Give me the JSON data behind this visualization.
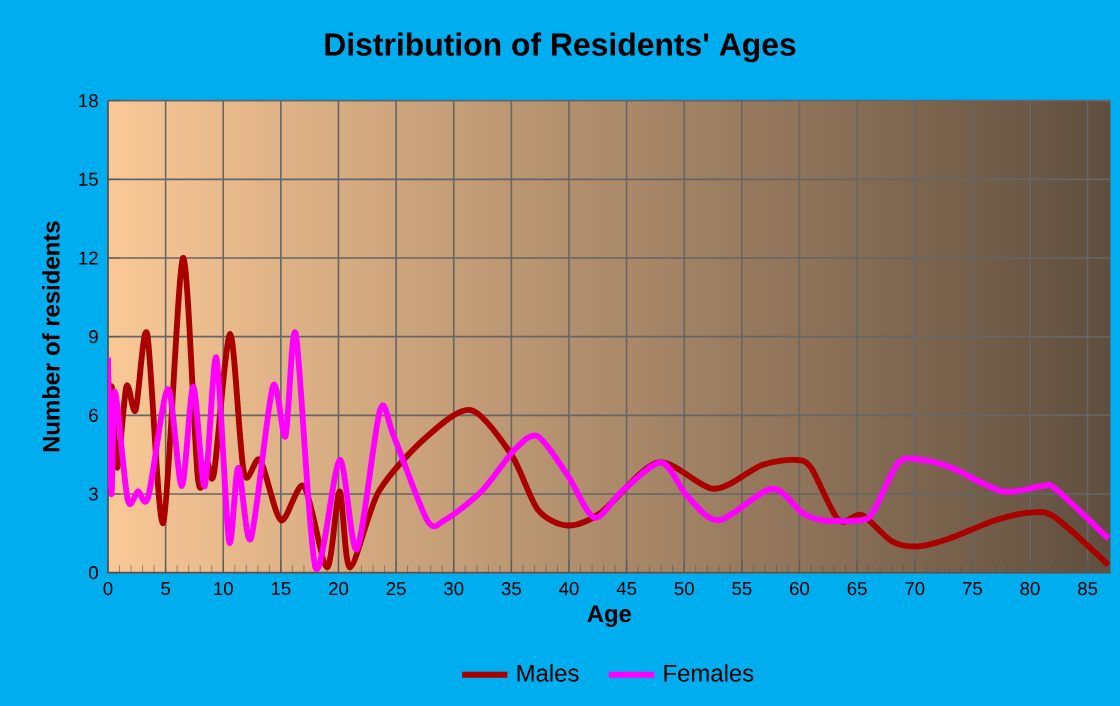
{
  "chart_data": {
    "type": "line",
    "title": "Distribution of Residents' Ages",
    "xlabel": "Age",
    "ylabel": "Number of residents",
    "xlim": [
      0,
      87
    ],
    "xticks": [
      0,
      5,
      10,
      15,
      20,
      25,
      30,
      35,
      40,
      45,
      50,
      55,
      60,
      65,
      70,
      75,
      80,
      85
    ],
    "ylim": [
      0,
      18
    ],
    "yticks": [
      0,
      3,
      6,
      9,
      12,
      15,
      18
    ],
    "grid": true,
    "legend": "bottom",
    "marker": "none",
    "line_style": "solid",
    "series": [
      {
        "name": "Males",
        "color": "#aa0000",
        "x": [
          0,
          0.3,
          0.8,
          1.6,
          2.4,
          3.4,
          4.8,
          6.5,
          7.8,
          8.6,
          9.2,
          10.6,
          11.8,
          13.2,
          15,
          17,
          19,
          20.1,
          21,
          23.5,
          27.7,
          31.5,
          35,
          37.3,
          39.9,
          42.8,
          47.7,
          52.6,
          56.7,
          59.6,
          61,
          63.4,
          65.4,
          68,
          70.3,
          73,
          77,
          80.2,
          82.2,
          86.8
        ],
        "values": [
          3,
          7.1,
          4,
          7.1,
          6.2,
          9.1,
          1.9,
          12,
          3.6,
          4.2,
          3.8,
          9.1,
          3.8,
          4.3,
          2,
          3.3,
          0.2,
          3.1,
          0.2,
          3.1,
          5.2,
          6.2,
          4.5,
          2.4,
          1.8,
          2.3,
          4.2,
          3.2,
          4.1,
          4.3,
          4,
          2,
          2.2,
          1.2,
          1,
          1.3,
          2,
          2.3,
          2.1,
          0.3
        ]
      },
      {
        "name": "Females",
        "color": "#ff00ff",
        "x": [
          0,
          0.3,
          0.6,
          1.7,
          2.6,
          3.5,
          5.2,
          6.4,
          7.4,
          8.4,
          9.4,
          10.5,
          11.3,
          12.4,
          14.3,
          15.4,
          16.3,
          18,
          20.1,
          21.6,
          23.6,
          24.8,
          27.7,
          29.2,
          32.4,
          35.3,
          37.3,
          39.9,
          42.2,
          44.6,
          48,
          50.3,
          53,
          57.6,
          60.2,
          61.9,
          65.4,
          66.5,
          68.6,
          70.6,
          73.2,
          77.6,
          81,
          82.2,
          86.8
        ],
        "values": [
          8.2,
          3,
          6.9,
          2.8,
          3.1,
          2.9,
          7,
          3.3,
          7.1,
          3.3,
          8.2,
          1.2,
          4,
          1.3,
          7.1,
          5.2,
          9.1,
          0.2,
          4.3,
          0.9,
          6.2,
          5.2,
          2,
          2,
          3.1,
          4.7,
          5.2,
          3.7,
          2.1,
          3.1,
          4.2,
          2.9,
          2,
          3.2,
          2.3,
          2,
          2,
          2.4,
          4.2,
          4.3,
          4,
          3.1,
          3.3,
          3.2,
          1.3
        ]
      }
    ]
  }
}
